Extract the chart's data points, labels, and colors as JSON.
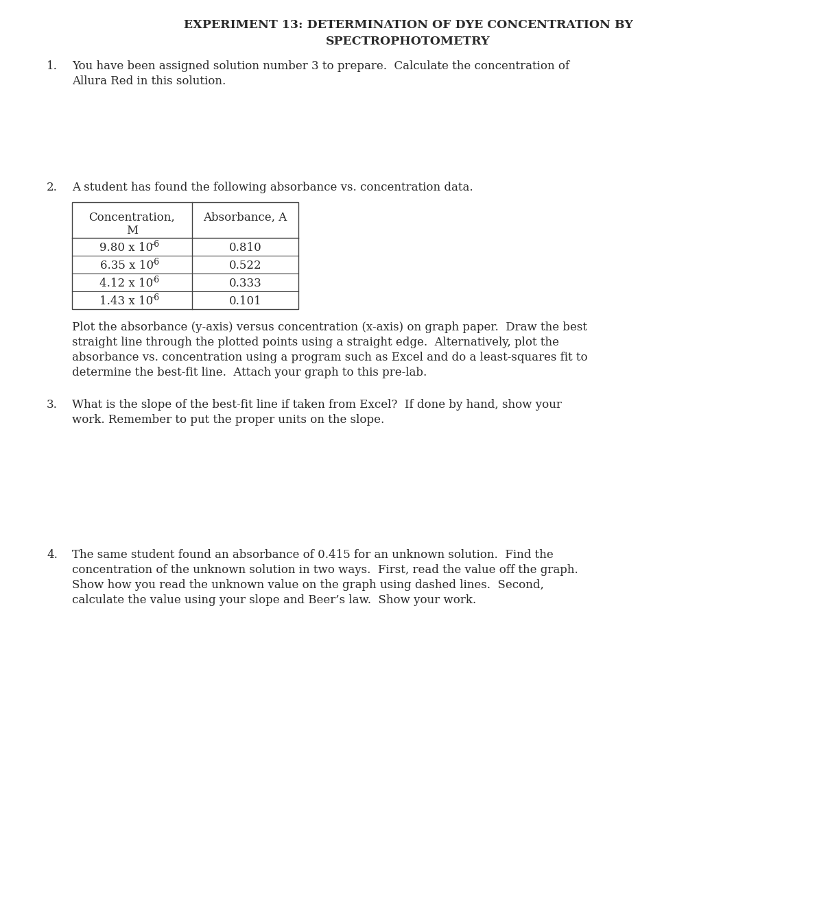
{
  "title_line1": "EXPERIMENT 13: DETERMINATION OF DYE CONCENTRATION BY",
  "title_line2": "SPECTROPHOTOMETRY",
  "q1_number": "1.",
  "q1_text_line1": "You have been assigned solution number 3 to prepare.  Calculate the concentration of",
  "q1_text_line2": "Allura Red in this solution.",
  "q2_number": "2.",
  "q2_intro": "A student has found the following absorbance vs. concentration data.",
  "table_col1_header_line1": "Concentration,",
  "table_col1_header_line2": "M",
  "table_col2_header": "Absorbance, A",
  "table_conc": [
    "9.80 x 10",
    "6.35 x 10",
    "4.12 x 10",
    "1.43 x 10"
  ],
  "table_exp": [
    "-6",
    "-6",
    "-6",
    "-6"
  ],
  "table_absorb": [
    "0.810",
    "0.522",
    "0.333",
    "0.101"
  ],
  "q2_para_line1": "Plot the absorbance (y-axis) versus concentration (x-axis) on graph paper.  Draw the best",
  "q2_para_line2": "straight line through the plotted points using a straight edge.  Alternatively, plot the",
  "q2_para_line3": "absorbance vs. concentration using a program such as Excel and do a least-squares fit to",
  "q2_para_line4": "determine the best-fit line.  Attach your graph to this pre-lab.",
  "q3_number": "3.",
  "q3_text_line1": "What is the slope of the best-fit line if taken from Excel?  If done by hand, show your",
  "q3_text_line2": "work. Remember to put the proper units on the slope.",
  "q4_number": "4.",
  "q4_text_line1": "The same student found an absorbance of 0.415 for an unknown solution.  Find the",
  "q4_text_line2": "concentration of the unknown solution in two ways.  First, read the value off the graph.",
  "q4_text_line3": "Show how you read the unknown value on the graph using dashed lines.  Second,",
  "q4_text_line4": "calculate the value using your slope and Beer’s law.  Show your work.",
  "bg_color": "#ffffff",
  "text_color": "#2a2a2a",
  "font_size_title": 12.5,
  "font_size_body": 12.0
}
